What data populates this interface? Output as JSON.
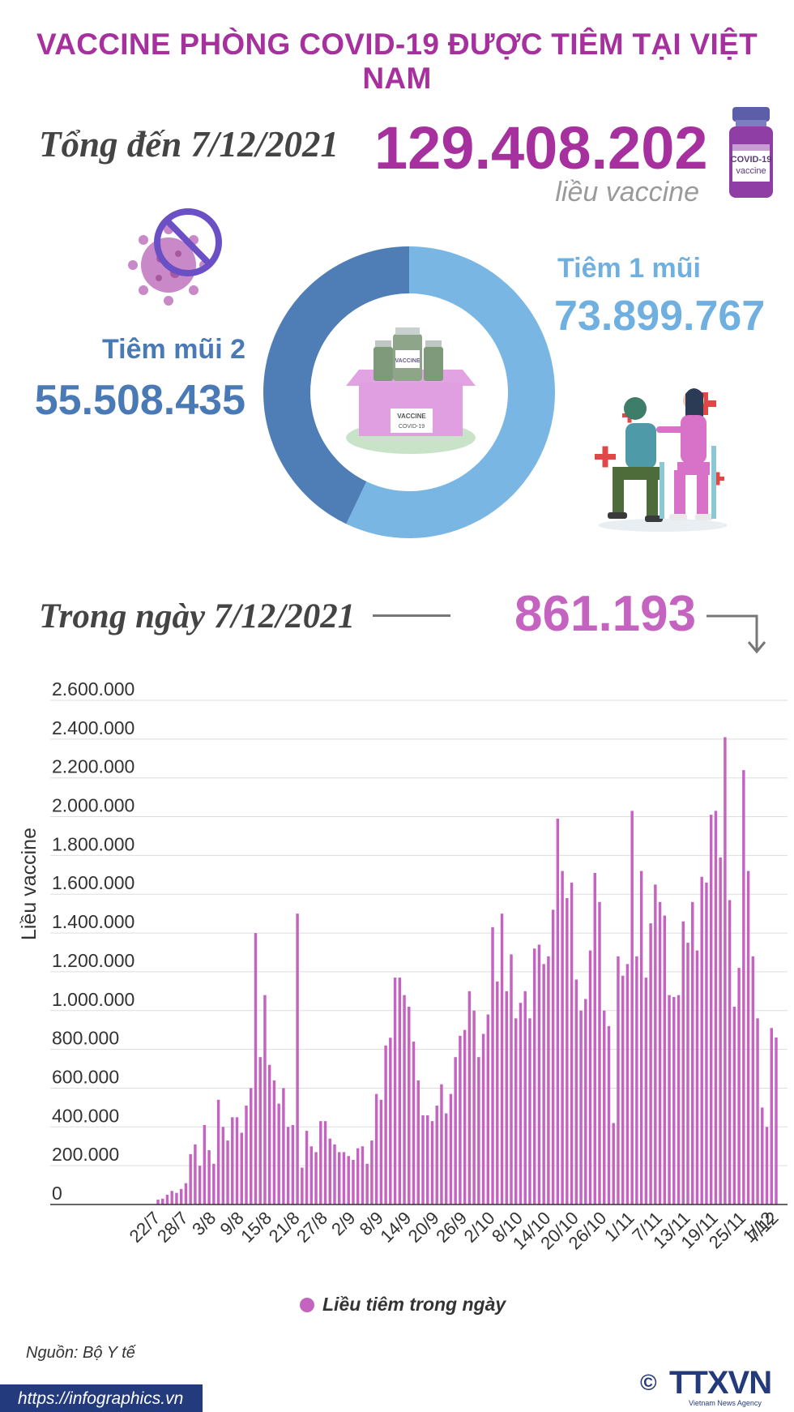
{
  "title": "VACCINE PHÒNG COVID-19 ĐƯỢC TIÊM TẠI VIỆT NAM",
  "total": {
    "label": "Tổng đến 7/12/2021",
    "value": "129.408.202",
    "unit": "liều vaccine"
  },
  "dose1": {
    "label": "Tiêm 1 mũi",
    "value": "73.899.767",
    "amount": 73899767,
    "color": "#7ab6e4"
  },
  "dose2": {
    "label": "Tiêm mũi 2",
    "value": "55.508.435",
    "amount": 55508435,
    "color": "#4f7db6"
  },
  "vial_label": {
    "line1": "COVID-19",
    "line2": "vaccine"
  },
  "box_label": {
    "top": "VACCINE",
    "bottom": "COVID-19",
    "bottle": "VACCINE"
  },
  "day": {
    "label": "Trong ngày 7/12/2021",
    "value": "861.193"
  },
  "source": "Nguồn: Bộ Y tế",
  "footer_url": "https://infographics.vn",
  "logo": {
    "copyright": "©",
    "name": "TTXVN",
    "tagline": "Vietnam News Agency"
  },
  "colors": {
    "title": "#a6309d",
    "bar": "#c563c1",
    "axis_text": "#333333"
  },
  "chart_data": {
    "type": "bar",
    "ylabel": "Liều vaccine",
    "ylim": [
      0,
      2600000
    ],
    "yticks": [
      0,
      200000,
      400000,
      600000,
      800000,
      1000000,
      1200000,
      1400000,
      1600000,
      1800000,
      2000000,
      2200000,
      2400000,
      2600000
    ],
    "ytick_labels": [
      "0",
      "200.000",
      "400.000",
      "600.000",
      "800.000",
      "1.000.000",
      "1.200.000",
      "1.400.000",
      "1.600.000",
      "1.800.000",
      "2.000.000",
      "2.200.000",
      "2.400.000",
      "2.600.000"
    ],
    "xtick_labels": [
      "22/7",
      "28/7",
      "3/8",
      "9/8",
      "15/8",
      "21/8",
      "27/8",
      "2/9",
      "8/9",
      "14/9",
      "20/9",
      "26/9",
      "2/10",
      "8/10",
      "14/10",
      "20/10",
      "26/10",
      "1/11",
      "7/11",
      "13/11",
      "19/11",
      "25/11",
      "1/12",
      "7/12"
    ],
    "grid": true,
    "legend": {
      "label": "Liều tiêm trong ngày",
      "position": "bottom"
    },
    "series": [
      {
        "name": "Liều tiêm trong ngày",
        "values": [
          25000,
          30000,
          50000,
          70000,
          60000,
          80000,
          110000,
          260000,
          310000,
          200000,
          410000,
          280000,
          210000,
          540000,
          400000,
          330000,
          450000,
          450000,
          370000,
          510000,
          600000,
          1400000,
          760000,
          1080000,
          720000,
          640000,
          520000,
          600000,
          400000,
          410000,
          1500000,
          190000,
          380000,
          300000,
          270000,
          430000,
          430000,
          340000,
          310000,
          270000,
          270000,
          250000,
          230000,
          290000,
          300000,
          210000,
          330000,
          570000,
          540000,
          820000,
          860000,
          1170000,
          1170000,
          1080000,
          1020000,
          840000,
          640000,
          460000,
          460000,
          430000,
          510000,
          620000,
          470000,
          570000,
          760000,
          870000,
          900000,
          1100000,
          1000000,
          760000,
          880000,
          980000,
          1430000,
          1150000,
          1500000,
          1100000,
          1290000,
          960000,
          1040000,
          1100000,
          960000,
          1320000,
          1340000,
          1240000,
          1280000,
          1520000,
          1990000,
          1720000,
          1580000,
          1660000,
          1160000,
          1000000,
          1060000,
          1310000,
          1710000,
          1560000,
          1000000,
          920000,
          420000,
          1280000,
          1180000,
          1240000,
          2030000,
          1280000,
          1720000,
          1170000,
          1450000,
          1650000,
          1560000,
          1490000,
          1080000,
          1070000,
          1080000,
          1460000,
          1350000,
          1560000,
          1310000,
          1690000,
          1660000,
          2010000,
          2030000,
          1790000,
          2410000,
          1570000,
          1020000,
          1220000,
          2240000,
          1720000,
          1280000,
          960000,
          500000,
          400000,
          910000,
          861193
        ]
      }
    ]
  }
}
